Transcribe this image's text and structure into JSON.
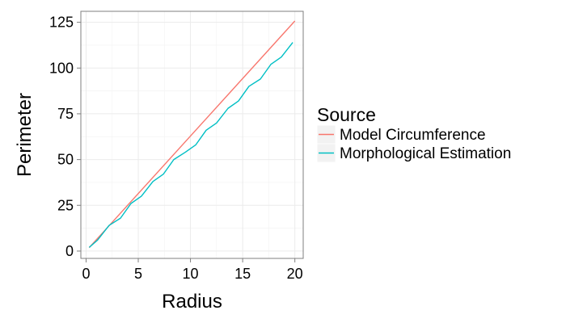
{
  "chart_data": {
    "type": "line",
    "xlabel": "Radius",
    "ylabel": "Perimeter",
    "xlim": [
      -0.5,
      20.8
    ],
    "ylim": [
      -4,
      131
    ],
    "x_ticks": [
      0,
      5,
      10,
      15,
      20
    ],
    "y_ticks": [
      0,
      25,
      50,
      75,
      100,
      125
    ],
    "x_tick_labels": [
      "0",
      "5",
      "10",
      "15",
      "20"
    ],
    "y_tick_labels": [
      "0",
      "25",
      "50",
      "75",
      "100",
      "125"
    ],
    "grid": true,
    "legend": {
      "title": "Source",
      "position": "right"
    },
    "series": [
      {
        "name": "Model Circumference",
        "color": "#F8766D",
        "x": [
          0.3,
          20
        ],
        "y": [
          1.9,
          125.7
        ]
      },
      {
        "name": "Morphological Estimation",
        "color": "#00BFC4",
        "x": [
          0.3,
          1.1,
          2.2,
          3.3,
          4.3,
          5.3,
          6.4,
          7.4,
          8.4,
          9.5,
          10.5,
          11.5,
          12.5,
          13.6,
          14.6,
          15.6,
          16.7,
          17.7,
          18.7,
          19.8
        ],
        "y": [
          2,
          6,
          14,
          18,
          26,
          30,
          38,
          42,
          50,
          54,
          58,
          66,
          70,
          78,
          82,
          90,
          94,
          102,
          106,
          114
        ]
      }
    ]
  }
}
